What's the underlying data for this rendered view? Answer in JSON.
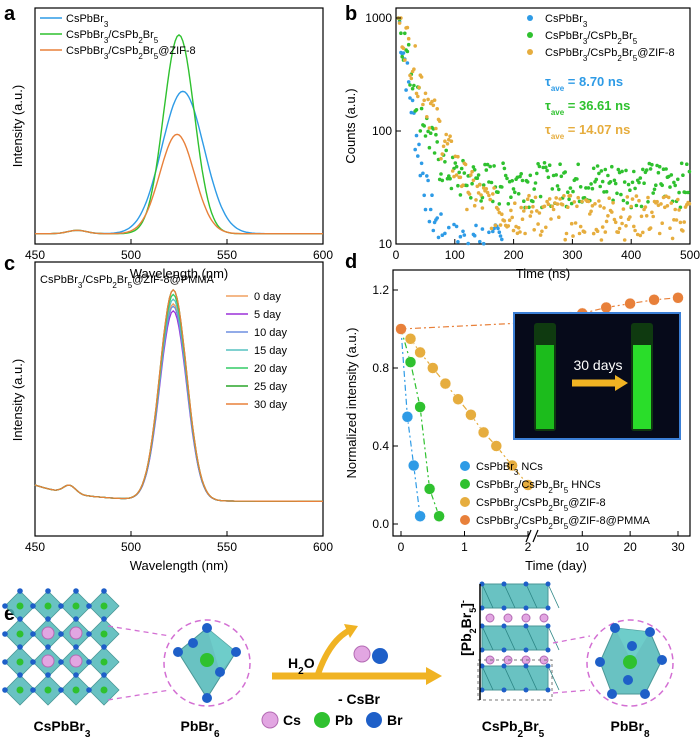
{
  "colors": {
    "blue": "#2e9be6",
    "green": "#2fc12f",
    "orange": "#e8803a",
    "gold": "#e6ad3e",
    "teal": "#56c2c0",
    "violet": "#9b30d9",
    "lblue": "#6e8fe0",
    "lgreen": "#33cc66",
    "dgreen": "#2aa52a",
    "lorange": "#f0a060"
  },
  "chart_data": [
    {
      "panel": "a",
      "type": "line",
      "xlabel": "Wavelength (nm)",
      "ylabel": "Intensity (a.u.)",
      "xlim": [
        450,
        600
      ],
      "xticks": [
        "450",
        "500",
        "550",
        "600"
      ],
      "legend": [
        "CsPbBr3",
        "CsPbBr3/CsPb2Br5",
        "CsPbBr3/CsPb2Br5@ZIF-8"
      ],
      "series": [
        {
          "peak": 527,
          "height": 0.63,
          "sigma": 11
        },
        {
          "peak": 525,
          "height": 0.88,
          "sigma": 8
        },
        {
          "peak": 524,
          "height": 0.44,
          "sigma": 9
        }
      ]
    },
    {
      "panel": "b",
      "type": "scatter",
      "scale": "log",
      "xlabel": "Time (ns)",
      "ylabel": "Counts (a.u.)",
      "xlim": [
        0,
        500
      ],
      "ylim": [
        10,
        1000
      ],
      "xticks": [
        "0",
        "100",
        "200",
        "300",
        "400",
        "500"
      ],
      "yticks": [
        "10",
        "100",
        "1000"
      ],
      "legend": [
        "CsPbBr3",
        "CsPbBr3/CsPb2Br5",
        "CsPbBr3/CsPb2Br5@ZIF-8"
      ],
      "tau": [
        {
          "label": "τave = 8.70 ns"
        },
        {
          "label": "τave = 36.61 ns"
        },
        {
          "label": "τave = 14.07 ns"
        }
      ],
      "decay": [
        {
          "tau": 12,
          "bg": 10,
          "floor": 12
        },
        {
          "tau": 18,
          "bg": 35,
          "floor": 25
        },
        {
          "tau": 28,
          "bg": 18,
          "floor": 14
        }
      ]
    },
    {
      "panel": "c",
      "type": "line",
      "title": "CsPbBr3/CsPb2Br5@ZIF-8@PMMA",
      "xlabel": "Wavelength (nm)",
      "ylabel": "Intensity (a.u.)",
      "xlim": [
        450,
        600
      ],
      "xticks": [
        "450",
        "500",
        "550",
        "600"
      ],
      "legend": [
        "0 day",
        "5 day",
        "10 day",
        "15 day",
        "20 day",
        "25 day",
        "30 day"
      ],
      "peak": 522,
      "heights": [
        0.84,
        0.81,
        0.83,
        0.86,
        0.88,
        0.9,
        0.9
      ]
    },
    {
      "panel": "d",
      "type": "scatter",
      "xlabel": "Time (day)",
      "ylabel": "Normalized intensity (a.u.)",
      "ylim": [
        0,
        1.2
      ],
      "yticks": [
        "0.0",
        "0.4",
        "0.8",
        "1.2"
      ],
      "xticks_left": [
        "0",
        "1",
        "2"
      ],
      "xticks_right": [
        "10",
        "20",
        "30"
      ],
      "legend": [
        "CsPbBr3 NCs",
        "CsPbBr3/CsPb2Br5 HNCs",
        "CsPbBr3/CsPb2Br5@ZIF-8",
        "CsPbBr3/CsPb2Br5@ZIF-8@PMMA"
      ],
      "inset_label": "30 days",
      "series": [
        {
          "x": [
            0,
            0.1,
            0.2,
            0.3
          ],
          "y": [
            1.0,
            0.55,
            0.3,
            0.04
          ]
        },
        {
          "x": [
            0,
            0.15,
            0.3,
            0.45,
            0.6
          ],
          "y": [
            1.0,
            0.83,
            0.6,
            0.18,
            0.04
          ]
        },
        {
          "x": [
            0,
            0.15,
            0.3,
            0.5,
            0.7,
            0.9,
            1.1,
            1.3,
            1.5,
            1.75,
            2.0
          ],
          "y": [
            1.0,
            0.95,
            0.88,
            0.8,
            0.72,
            0.64,
            0.56,
            0.47,
            0.4,
            0.3,
            0.2
          ]
        },
        {
          "x": [
            0,
            5,
            7.5,
            10,
            15,
            20,
            25,
            30
          ],
          "y": [
            1.0,
            1.04,
            1.06,
            1.08,
            1.11,
            1.13,
            1.15,
            1.16
          ]
        }
      ]
    }
  ],
  "schematic": {
    "label_h2o": "H2O",
    "label_csbr": "- CsBr",
    "atoms": [
      "Cs",
      "Pb",
      "Br"
    ],
    "names": {
      "a": "CsPbBr3",
      "b": "PbBr6",
      "c": "CsPb2Br5",
      "d": "PbBr8"
    },
    "bracket": "[Pb2Br5]-"
  }
}
